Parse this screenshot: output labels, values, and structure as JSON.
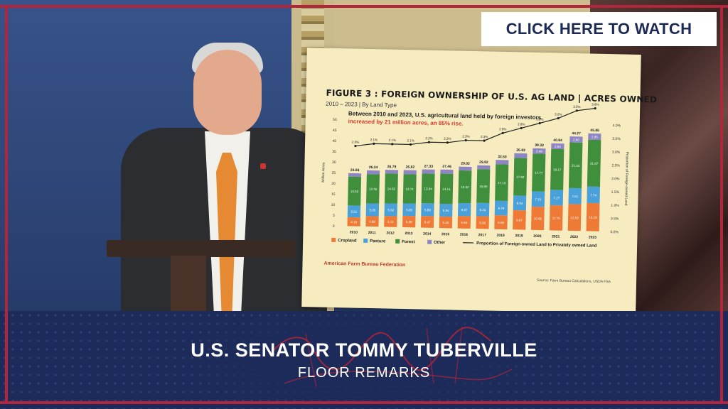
{
  "cta": {
    "label": "CLICK HERE TO WATCH"
  },
  "lower_third": {
    "name": "U.S. SENATOR TOMMY TUBERVILLE",
    "subtitle": "FLOOR REMARKS"
  },
  "colors": {
    "frame": "#b3253a",
    "navy": "#1d2b5a",
    "cta_text": "#1c2a55"
  },
  "chart_data": {
    "type": "bar",
    "title": "FIGURE 3 : FOREIGN OWNERSHIP OF U.S. AG LAND | ACRES OWNED",
    "subtitle": "2010 – 2023 | By Land Type",
    "note_prefix": "Between 2010 and 2023, U.S. agricultural land held by foreign investors ",
    "note_highlight": "increased by 21 million acres, an 85% rise.",
    "ylabel": "Million Acres",
    "y2label": "Proportion of Foreign-owned Land",
    "ylim": [
      0,
      50
    ],
    "y2lim": [
      0,
      4
    ],
    "yticks": [
      "0",
      "5",
      "10",
      "15",
      "20",
      "25",
      "30",
      "35",
      "40",
      "45",
      "50"
    ],
    "y2ticks": [
      "0.0%",
      "0.5%",
      "1.0%",
      "1.5%",
      "2.0%",
      "2.5%",
      "3.0%",
      "3.5%",
      "4.0%"
    ],
    "categories": [
      "2010",
      "2011",
      "2012",
      "2013",
      "2014",
      "2015",
      "2016",
      "2017",
      "2018",
      "2019",
      "2020",
      "2021",
      "2022",
      "2023"
    ],
    "series": [
      {
        "name": "Cropland",
        "color": "#ee7a36",
        "values": [
          4.18,
          4.88,
          5.11,
          5.36,
          5.47,
          5.43,
          5.84,
          5.93,
          6.56,
          9.07,
          10.95,
          11.76,
          12.53,
          13.19
        ]
      },
      {
        "name": "Pasture",
        "color": "#4aa0d8",
        "values": [
          5.51,
          5.95,
          5.92,
          5.85,
          5.99,
          5.94,
          6.07,
          6.24,
          6.79,
          6.94,
          7.15,
          7.27,
          7.51,
          7.74
        ]
      },
      {
        "name": "Forest",
        "color": "#3f8f3c",
        "values": [
          13.53,
          13.78,
          14.02,
          13.71,
          13.94,
          14.14,
          15.32,
          15.8,
          17.13,
          17.62,
          17.77,
          19.17,
          21.43,
          21.97
        ]
      },
      {
        "name": "Other",
        "color": "#8e86c4",
        "values": [
          1.62,
          1.73,
          1.74,
          1.9,
          1.93,
          1.95,
          1.79,
          1.85,
          2.05,
          2.2,
          2.46,
          2.64,
          2.8,
          2.95
        ]
      }
    ],
    "totals": [
      "24.84",
      "26.34",
      "26.79",
      "26.82",
      "27.33",
      "27.46",
      "29.02",
      "29.82",
      "32.53",
      "35.83",
      "38.33",
      "40.84",
      "44.27",
      "45.85"
    ],
    "line": {
      "name": "Proportion of Foreign-owned Land to Privately owned Land",
      "values": [
        2.0,
        2.1,
        2.1,
        2.1,
        2.2,
        2.2,
        2.3,
        2.3,
        2.6,
        2.8,
        3.0,
        3.2,
        3.5,
        3.6
      ],
      "labels": [
        "2.0%",
        "2.1%",
        "2.1%",
        "2.1%",
        "2.2%",
        "2.2%",
        "2.3%",
        "2.3%",
        "2.6%",
        "2.8%",
        "3.0%",
        "3.2%",
        "3.5%",
        "3.6%"
      ]
    },
    "legend": [
      "Cropland",
      "Pasture",
      "Forest",
      "Other"
    ],
    "source": "American Farm Bureau Federation",
    "calc": "Source: Farm Bureau Calculations, USDA FSA"
  }
}
